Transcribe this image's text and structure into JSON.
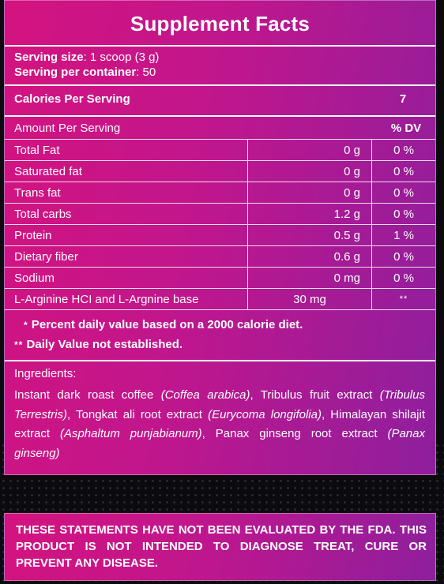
{
  "title": "Supplement Facts",
  "serving": {
    "size_label": "Serving size",
    "size_value": ": 1 scoop (3 g)",
    "per_container_label": "Serving per container",
    "per_container_value": ": 50"
  },
  "calories": {
    "label": "Calories Per Serving",
    "value": "7"
  },
  "amount_header": {
    "label": "Amount Per Serving",
    "dv_label": "% DV"
  },
  "nutrients": [
    {
      "name": "Total Fat",
      "amount": "0 g",
      "dv": "0 %"
    },
    {
      "name": "Saturated fat",
      "amount": "0 g",
      "dv": "0 %"
    },
    {
      "name": "Trans fat",
      "amount": "0 g",
      "dv": "0 %"
    },
    {
      "name": "Total carbs",
      "amount": "1.2 g",
      "dv": "0 %"
    },
    {
      "name": "Protein",
      "amount": "0.5 g",
      "dv": "1 %"
    },
    {
      "name": "Dietary fiber",
      "amount": "0.6 g",
      "dv": "0 %"
    },
    {
      "name": "Sodium",
      "amount": "0 mg",
      "dv": "0 %"
    },
    {
      "name": "L-Arginine HCI and L-Argnine base",
      "amount": "30 mg",
      "dv": "**"
    }
  ],
  "notes": {
    "note1_star": "*",
    "note1_text": "Percent daily value based on a 2000 calorie diet.",
    "note2_star": "**",
    "note2_text": "Daily Value not established."
  },
  "ingredients": {
    "label": "Ingredients:",
    "parts": [
      {
        "text": "Instant dark roast coffee ",
        "italic": false
      },
      {
        "text": "(Coffea arabica)",
        "italic": true
      },
      {
        "text": ", Tribulus fruit extract ",
        "italic": false
      },
      {
        "text": "(Tribulus Terrestris)",
        "italic": true
      },
      {
        "text": ", Tongkat ali root extract ",
        "italic": false
      },
      {
        "text": "(Eurycoma longifolia)",
        "italic": true
      },
      {
        "text": ", Himalayan shilajit extract ",
        "italic": false
      },
      {
        "text": "(Asphaltum punjabianum)",
        "italic": true
      },
      {
        "text": ", Panax ginseng root extract ",
        "italic": false
      },
      {
        "text": "(Panax ginseng)",
        "italic": true
      }
    ]
  },
  "disclaimer": "THESE STATEMENTS HAVE NOT BEEN EVALUATED BY THE FDA. THIS PRODUCT IS NOT INTENDED TO DIAGNOSE TREAT, CURE OR PREVENT ANY DISEASE.",
  "colors": {
    "gradient_start": "#d4137f",
    "gradient_end": "#8e1f9d",
    "background": "#0b0b0f",
    "text": "#ffffff"
  }
}
